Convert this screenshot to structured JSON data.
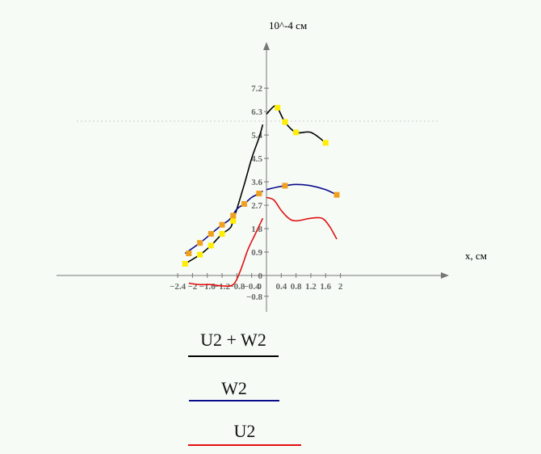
{
  "chart_data": {
    "type": "line",
    "ylabel": "10^-4 см",
    "xlabel": "x, см",
    "xlim": [
      -2.4,
      2.0
    ],
    "ylim": [
      -0.8,
      7.2
    ],
    "x_ticks": [
      "-2.4",
      "-2",
      "-1.6",
      "-1.2",
      "-0.8",
      "-0.4",
      "0",
      "0.4",
      "0.8",
      "1.2",
      "1.6",
      "2"
    ],
    "y_ticks": [
      "7.2",
      "6.3",
      "5.4",
      "4.5",
      "3.6",
      "2.7",
      "1.8",
      "0.9",
      "0",
      "-0.8"
    ],
    "grid": false,
    "legend_position": "bottom",
    "series": [
      {
        "name": "U2 + W2",
        "color": "#000000",
        "segments": [
          [
            [
              -2.2,
              0.45
            ],
            [
              -1.8,
              0.8
            ],
            [
              -1.5,
              1.15
            ],
            [
              -1.2,
              1.6
            ],
            [
              -1.0,
              1.8
            ],
            [
              -0.9,
              2.1
            ],
            [
              -0.6,
              3.5
            ],
            [
              -0.4,
              4.5
            ],
            [
              -0.2,
              5.3
            ],
            [
              -0.1,
              5.8
            ]
          ],
          [
            [
              0.0,
              6.2
            ],
            [
              0.2,
              6.5
            ],
            [
              0.3,
              6.45
            ],
            [
              0.5,
              5.9
            ],
            [
              0.8,
              5.5
            ],
            [
              1.2,
              5.5
            ],
            [
              1.6,
              5.1
            ]
          ]
        ],
        "markers": [
          [
            -2.2,
            0.45
          ],
          [
            -1.8,
            0.8
          ],
          [
            -1.5,
            1.15
          ],
          [
            -1.2,
            1.6
          ],
          [
            -0.9,
            2.1
          ],
          [
            0.3,
            6.45
          ],
          [
            0.5,
            5.9
          ],
          [
            0.8,
            5.5
          ],
          [
            1.6,
            5.1
          ]
        ],
        "marker_color": "#ffee00"
      },
      {
        "name": "W2",
        "color": "#0a0a8a",
        "segments": [
          [
            [
              -2.2,
              0.85
            ],
            [
              -1.8,
              1.25
            ],
            [
              -1.5,
              1.6
            ],
            [
              -1.2,
              1.95
            ],
            [
              -1.0,
              2.15
            ],
            [
              -0.8,
              2.55
            ],
            [
              -0.6,
              2.75
            ],
            [
              -0.4,
              3.0
            ],
            [
              -0.2,
              3.15
            ],
            [
              -0.1,
              3.25
            ]
          ],
          [
            [
              0.0,
              3.3
            ],
            [
              0.3,
              3.4
            ],
            [
              0.5,
              3.45
            ],
            [
              0.8,
              3.5
            ],
            [
              1.2,
              3.45
            ],
            [
              1.6,
              3.3
            ],
            [
              1.9,
              3.1
            ]
          ]
        ],
        "markers": [
          [
            -2.1,
            0.85
          ],
          [
            -1.8,
            1.25
          ],
          [
            -1.5,
            1.6
          ],
          [
            -1.2,
            1.95
          ],
          [
            -0.9,
            2.3
          ],
          [
            -0.6,
            2.75
          ],
          [
            -0.2,
            3.15
          ],
          [
            0.5,
            3.45
          ],
          [
            1.9,
            3.1
          ]
        ],
        "marker_color": "#f0a020"
      },
      {
        "name": "U2",
        "color": "#e01010",
        "segments": [
          [
            [
              -2.1,
              -0.3
            ],
            [
              -1.8,
              -0.35
            ],
            [
              -1.5,
              -0.35
            ],
            [
              -1.2,
              -0.4
            ],
            [
              -0.9,
              -0.35
            ],
            [
              -0.7,
              0.2
            ],
            [
              -0.5,
              1.0
            ],
            [
              -0.3,
              1.6
            ],
            [
              -0.1,
              2.2
            ]
          ],
          [
            [
              0.0,
              3.0
            ],
            [
              0.2,
              2.9
            ],
            [
              0.4,
              2.5
            ],
            [
              0.6,
              2.2
            ],
            [
              0.8,
              2.1
            ],
            [
              1.2,
              2.2
            ],
            [
              1.5,
              2.2
            ],
            [
              1.7,
              1.9
            ],
            [
              1.9,
              1.4
            ]
          ]
        ],
        "markers": [],
        "marker_color": ""
      }
    ]
  },
  "legend": [
    {
      "label": "U2 + W2",
      "color": "#000000"
    },
    {
      "label": "W2",
      "color": "#0a0a8a"
    },
    {
      "label": "U2",
      "color": "#e01010"
    }
  ]
}
